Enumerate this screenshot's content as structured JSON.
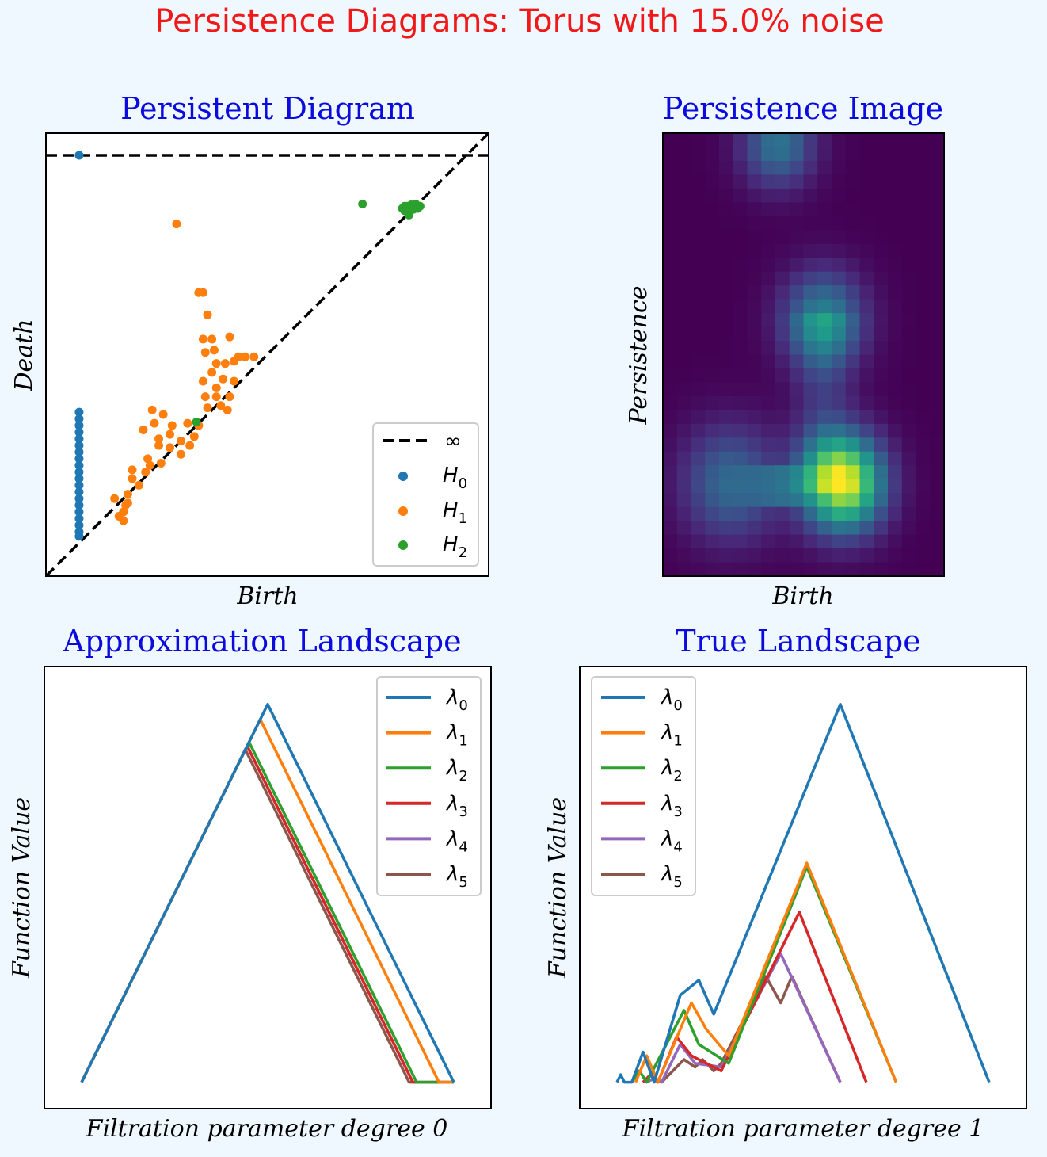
{
  "figure": {
    "title": "Persistence Diagrams:  Torus with 15.0% noise",
    "title_color": "#f01818",
    "panel_title_color": "#0b0bde"
  },
  "chart_data": [
    {
      "type": "scatter",
      "title": "Persistent Diagram",
      "xlabel": "Birth",
      "ylabel": "Death",
      "xlim": [
        0,
        10
      ],
      "ylim": [
        0,
        10
      ],
      "infinity_level": 9.5,
      "diagonal": true,
      "legend": {
        "position": "bottom-right",
        "entries": [
          {
            "kind": "line",
            "label": "∞",
            "color": "#000000"
          },
          {
            "kind": "dot",
            "label": "H",
            "sub": "0",
            "color": "#1f77b4"
          },
          {
            "kind": "dot",
            "label": "H",
            "sub": "1",
            "color": "#ff7f0e"
          },
          {
            "kind": "dot",
            "label": "H",
            "sub": "2",
            "color": "#2ca02c"
          }
        ]
      },
      "series": [
        {
          "name": "H0",
          "color": "#1f77b4",
          "points": [
            [
              0.75,
              9.5
            ],
            [
              0.75,
              3.7
            ],
            [
              0.75,
              3.55
            ],
            [
              0.75,
              3.4
            ],
            [
              0.75,
              3.25
            ],
            [
              0.75,
              3.1
            ],
            [
              0.75,
              2.95
            ],
            [
              0.75,
              2.8
            ],
            [
              0.75,
              2.65
            ],
            [
              0.75,
              2.5
            ],
            [
              0.75,
              2.35
            ],
            [
              0.75,
              2.2
            ],
            [
              0.75,
              2.05
            ],
            [
              0.75,
              1.9
            ],
            [
              0.75,
              1.75
            ],
            [
              0.75,
              1.6
            ],
            [
              0.75,
              1.45
            ],
            [
              0.75,
              1.3
            ],
            [
              0.75,
              1.15
            ],
            [
              0.75,
              1.0
            ],
            [
              0.75,
              0.9
            ]
          ]
        },
        {
          "name": "H1",
          "color": "#ff7f0e",
          "points": [
            [
              2.95,
              7.95
            ],
            [
              3.45,
              6.4
            ],
            [
              3.55,
              6.4
            ],
            [
              3.65,
              5.9
            ],
            [
              3.55,
              5.35
            ],
            [
              3.75,
              5.35
            ],
            [
              4.15,
              5.4
            ],
            [
              3.6,
              5.05
            ],
            [
              3.8,
              5.1
            ],
            [
              4.35,
              4.95
            ],
            [
              4.5,
              4.95
            ],
            [
              4.7,
              4.95
            ],
            [
              3.85,
              4.8
            ],
            [
              4.05,
              4.8
            ],
            [
              4.25,
              4.85
            ],
            [
              3.75,
              4.6
            ],
            [
              3.55,
              4.4
            ],
            [
              4.0,
              4.45
            ],
            [
              3.85,
              4.25
            ],
            [
              4.25,
              4.4
            ],
            [
              3.6,
              4.05
            ],
            [
              3.85,
              4.05
            ],
            [
              4.15,
              4.05
            ],
            [
              3.65,
              3.8
            ],
            [
              3.95,
              3.85
            ],
            [
              4.1,
              3.75
            ],
            [
              2.4,
              3.75
            ],
            [
              2.65,
              3.65
            ],
            [
              2.45,
              3.45
            ],
            [
              2.85,
              3.4
            ],
            [
              3.2,
              3.45
            ],
            [
              3.45,
              3.4
            ],
            [
              2.2,
              3.3
            ],
            [
              2.55,
              3.1
            ],
            [
              2.8,
              3.2
            ],
            [
              3.05,
              3.05
            ],
            [
              3.35,
              3.15
            ],
            [
              2.55,
              2.95
            ],
            [
              2.8,
              2.9
            ],
            [
              3.05,
              2.75
            ],
            [
              3.25,
              2.95
            ],
            [
              2.3,
              2.65
            ],
            [
              2.6,
              2.55
            ],
            [
              1.95,
              2.4
            ],
            [
              2.25,
              2.35
            ],
            [
              1.95,
              2.2
            ],
            [
              2.1,
              2.05
            ],
            [
              1.85,
              1.85
            ],
            [
              1.55,
              1.75
            ],
            [
              1.8,
              1.6
            ],
            [
              1.75,
              1.45
            ],
            [
              1.65,
              1.35
            ],
            [
              1.75,
              1.25
            ],
            [
              1.85,
              1.65
            ],
            [
              2.35,
              2.5
            ]
          ]
        },
        {
          "name": "H2",
          "color": "#2ca02c",
          "points": [
            [
              7.15,
              8.4
            ],
            [
              8.05,
              8.3
            ],
            [
              8.15,
              8.35
            ],
            [
              8.25,
              8.38
            ],
            [
              8.35,
              8.4
            ],
            [
              8.45,
              8.35
            ],
            [
              8.1,
              8.25
            ],
            [
              8.2,
              8.2
            ],
            [
              8.3,
              8.28
            ],
            [
              8.4,
              8.3
            ],
            [
              8.2,
              8.15
            ],
            [
              8.1,
              8.35
            ],
            [
              3.4,
              3.48
            ]
          ]
        }
      ]
    },
    {
      "type": "heatmap",
      "title": "Persistence Image",
      "xlabel": "Birth",
      "ylabel": "Persistence",
      "colormap": "viridis",
      "blobs": [
        {
          "birth": 0.41,
          "persistence": 0.975,
          "intensity": 0.38,
          "spread": 0.09
        },
        {
          "birth": 0.57,
          "persistence": 0.58,
          "intensity": 0.45,
          "spread": 0.1
        },
        {
          "birth": 0.24,
          "persistence": 0.21,
          "intensity": 0.34,
          "spread": 0.12
        },
        {
          "birth": 0.64,
          "persistence": 0.21,
          "intensity": 0.95,
          "spread": 0.1
        }
      ],
      "ridges": [
        {
          "birth": 0.57,
          "from": 0.25,
          "to": 0.55,
          "intensity": 0.22
        },
        {
          "birth": 0.42,
          "from": 0.2,
          "to": 0.2,
          "intensity": 0.3
        }
      ]
    },
    {
      "type": "line",
      "title": "Approximation Landscape",
      "xlabel": "Filtration parameter degree  0",
      "ylabel": "Function Value",
      "xlim": [
        -0.1,
        1.1
      ],
      "ylim": [
        -0.07,
        1.1
      ],
      "legend": {
        "position": "top-right"
      },
      "series": [
        {
          "name": "λ",
          "sub": "0",
          "color": "#1f77b4",
          "x": [
            0,
            0.5,
            1.0
          ],
          "y": [
            0,
            1.0,
            0
          ]
        },
        {
          "name": "λ",
          "sub": "1",
          "color": "#ff7f0e",
          "x": [
            0,
            0.48,
            0.96,
            1.0
          ],
          "y": [
            0,
            0.96,
            0,
            0
          ]
        },
        {
          "name": "λ",
          "sub": "2",
          "color": "#2ca02c",
          "x": [
            0,
            0.45,
            0.9,
            1.0
          ],
          "y": [
            0,
            0.9,
            0,
            0
          ]
        },
        {
          "name": "λ",
          "sub": "3",
          "color": "#d62728",
          "x": [
            0,
            0.445,
            0.89,
            1.0
          ],
          "y": [
            0,
            0.89,
            0,
            0
          ]
        },
        {
          "name": "λ",
          "sub": "4",
          "color": "#9467bd",
          "x": [
            0,
            0.445,
            0.89,
            1.0
          ],
          "y": [
            0,
            0.89,
            0,
            0
          ]
        },
        {
          "name": "λ",
          "sub": "5",
          "color": "#8c564b",
          "x": [
            0,
            0.44,
            0.88,
            1.0
          ],
          "y": [
            0,
            0.88,
            0,
            0
          ]
        }
      ]
    },
    {
      "type": "line",
      "title": "True Landscape",
      "xlabel": "Filtration parameter degree  1",
      "ylabel": "Function Value",
      "xlim": [
        -0.1,
        1.1
      ],
      "ylim": [
        -0.07,
        1.1
      ],
      "legend": {
        "position": "top-left"
      },
      "series": [
        {
          "name": "λ",
          "sub": "0",
          "color": "#1f77b4",
          "x": [
            0,
            0.01,
            0.02,
            0.04,
            0.07,
            0.1,
            0.17,
            0.22,
            0.26,
            0.6,
            1.0
          ],
          "y": [
            0,
            0.02,
            0,
            0,
            0.08,
            0.0,
            0.23,
            0.27,
            0.18,
            1.0,
            0
          ]
        },
        {
          "name": "λ",
          "sub": "1",
          "color": "#ff7f0e",
          "x": [
            0.05,
            0.08,
            0.11,
            0.2,
            0.24,
            0.3,
            0.51,
            0.75
          ],
          "y": [
            0,
            0.07,
            0,
            0.21,
            0.14,
            0.07,
            0.58,
            0
          ]
        },
        {
          "name": "λ",
          "sub": "2",
          "color": "#2ca02c",
          "x": [
            0.04,
            0.06,
            0.08,
            0.18,
            0.22,
            0.3,
            0.51,
            0.75
          ],
          "y": [
            0,
            0.03,
            0,
            0.19,
            0.1,
            0.05,
            0.57,
            0
          ]
        },
        {
          "name": "λ",
          "sub": "3",
          "color": "#d62728",
          "x": [
            0.07,
            0.09,
            0.11,
            0.16,
            0.2,
            0.28,
            0.49,
            0.67
          ],
          "y": [
            0,
            0.02,
            0,
            0.12,
            0.07,
            0.03,
            0.45,
            0
          ]
        },
        {
          "name": "λ",
          "sub": "4",
          "color": "#9467bd",
          "x": [
            0.08,
            0.1,
            0.12,
            0.17,
            0.21,
            0.28,
            0.44,
            0.6
          ],
          "y": [
            0,
            0.01,
            0,
            0.1,
            0.05,
            0.04,
            0.34,
            0
          ]
        },
        {
          "name": "λ",
          "sub": "5",
          "color": "#8c564b",
          "x": [
            0.12,
            0.14,
            0.18,
            0.21,
            0.23,
            0.26,
            0.28,
            0.4,
            0.44,
            0.47,
            0.6
          ],
          "y": [
            0,
            0.02,
            0.06,
            0.04,
            0.06,
            0.03,
            0.05,
            0.28,
            0.21,
            0.28,
            0
          ]
        }
      ]
    }
  ]
}
